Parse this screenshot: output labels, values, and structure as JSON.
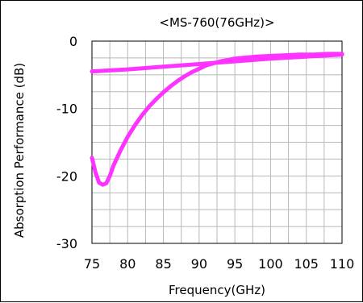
{
  "chart_data": {
    "type": "line",
    "title": "<MS-760(76GHz)>",
    "xlabel": "Frequency(GHz)",
    "ylabel": "Absorption Performance (dB)",
    "xlim": [
      75,
      110
    ],
    "ylim": [
      -30,
      0
    ],
    "x_ticks": [
      "75",
      "80",
      "85",
      "90",
      "95",
      "100",
      "105",
      "110"
    ],
    "y_ticks": [
      "0",
      "-10",
      "-20",
      "-30"
    ],
    "grid": true,
    "line_color": "#ff33ff",
    "series": [
      {
        "x": [
          75,
          75.5,
          76,
          76.5,
          77,
          77.5,
          78,
          79,
          80,
          81,
          82,
          83,
          84,
          85,
          86,
          87,
          88,
          89,
          90,
          91,
          92,
          93,
          94,
          95,
          96,
          97,
          98,
          100,
          102,
          104,
          106,
          108,
          110
        ],
        "values": [
          -17.3,
          -19.5,
          -21.0,
          -21.3,
          -21.1,
          -20.0,
          -18.5,
          -16.2,
          -14.2,
          -12.5,
          -11.0,
          -9.7,
          -8.6,
          -7.6,
          -6.7,
          -5.9,
          -5.2,
          -4.6,
          -4.1,
          -3.6,
          -3.3,
          -3.0,
          -2.8,
          -2.6,
          -2.5,
          -2.4,
          -2.3,
          -2.2,
          -2.1,
          -2.0,
          -2.0,
          -1.9,
          -1.9
        ]
      },
      {
        "x": [
          75,
          80,
          85,
          90,
          95,
          100,
          105,
          110
        ],
        "values": [
          -4.5,
          -4.2,
          -3.8,
          -3.4,
          -3.0,
          -2.6,
          -2.3,
          -2.0
        ]
      }
    ]
  }
}
